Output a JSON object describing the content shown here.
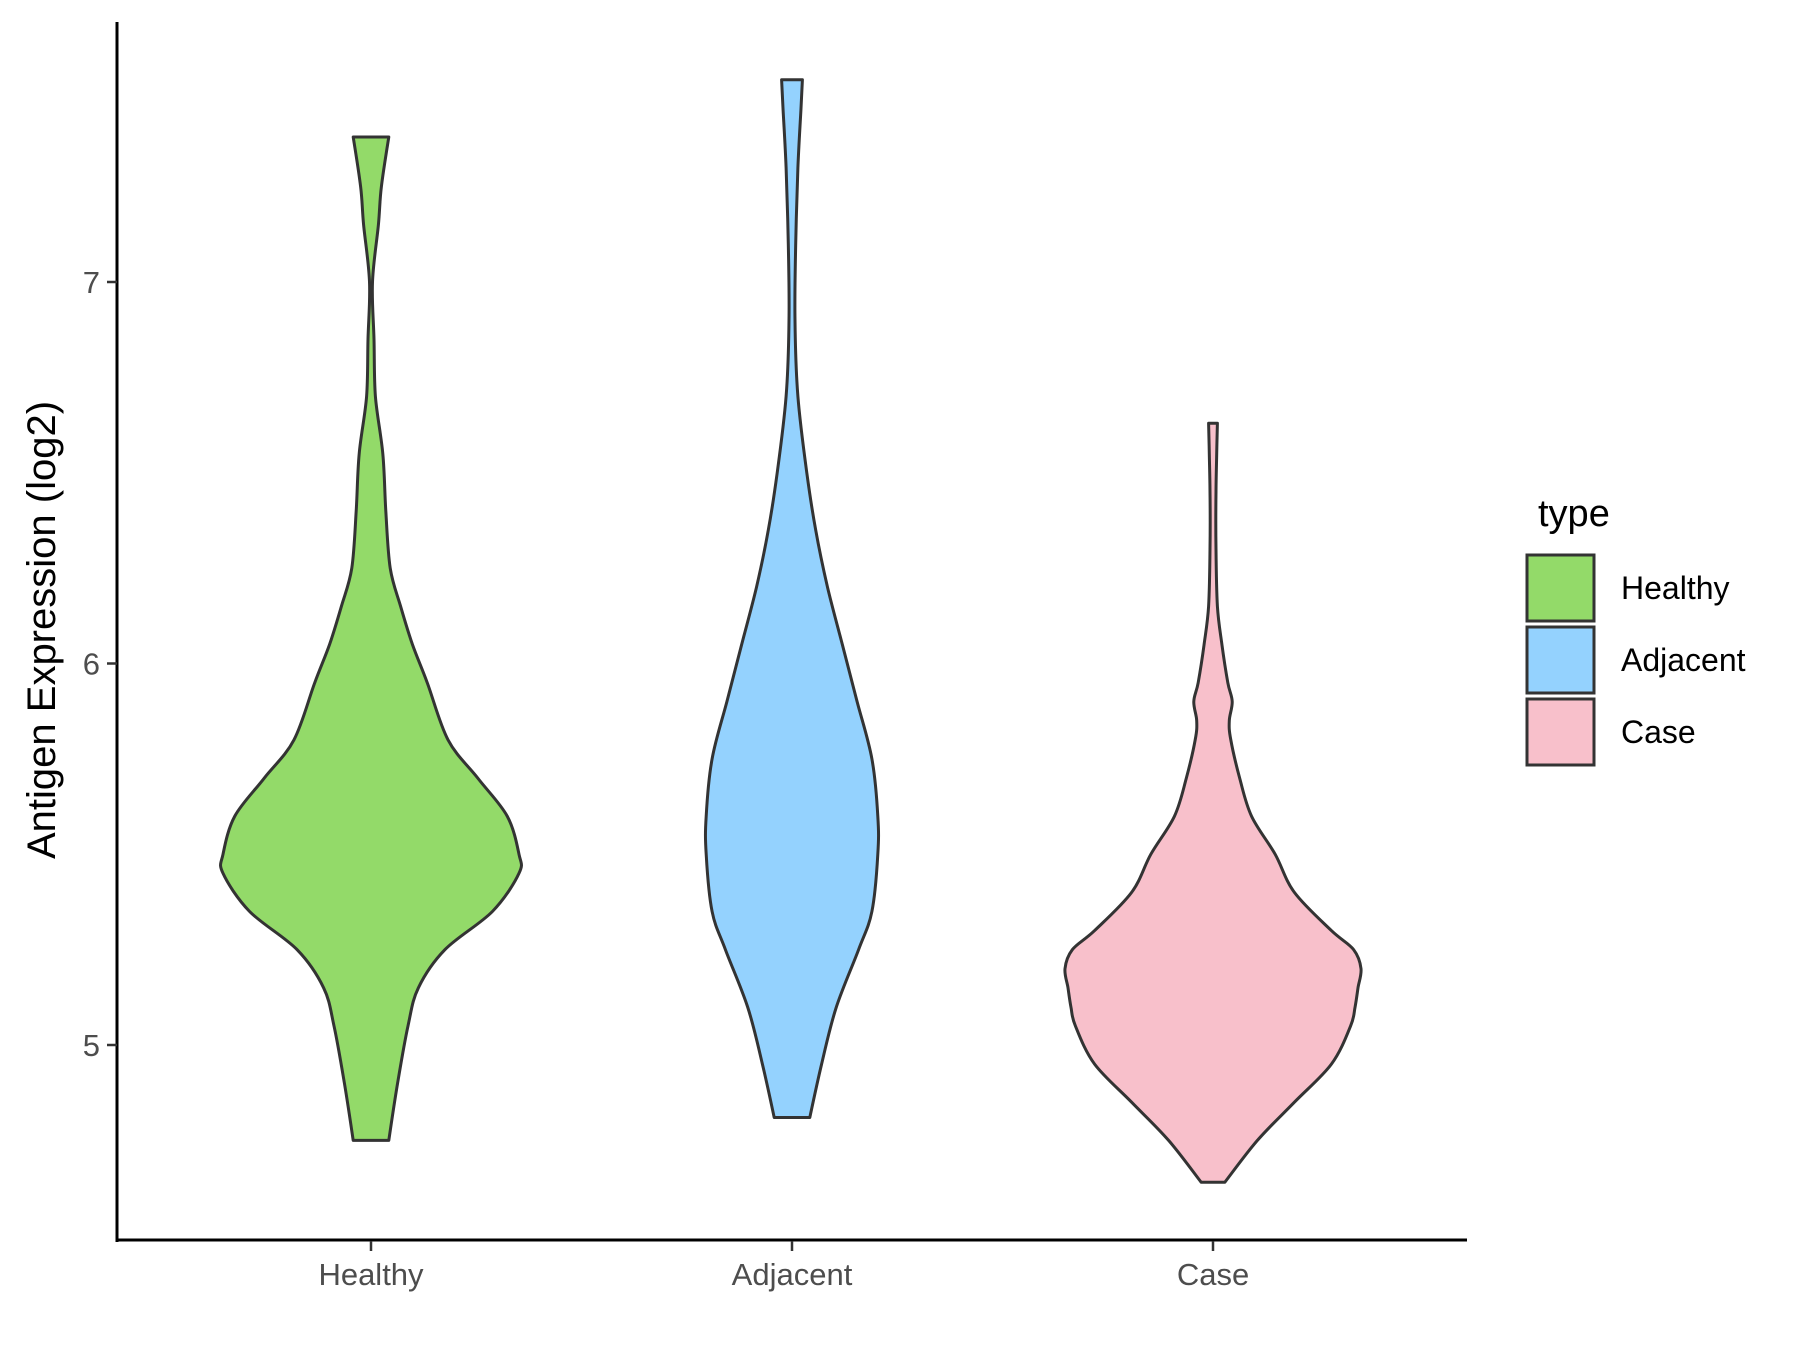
{
  "chart_data": {
    "type": "violin",
    "xlabel": "",
    "ylabel": "Antigen Expression (log2)",
    "ylim": [
      4.5,
      7.68
    ],
    "yticks": [
      5,
      6,
      7
    ],
    "categories": [
      "Healthy",
      "Adjacent",
      "Case"
    ],
    "grid": false,
    "legend": {
      "title": "type",
      "position": "right",
      "entries": [
        "Healthy",
        "Adjacent",
        "Case"
      ]
    },
    "series": [
      {
        "name": "Healthy",
        "color": "#93DA69",
        "min": 4.75,
        "max": 7.38,
        "profile": [
          [
            4.75,
            0.12
          ],
          [
            4.9,
            0.18
          ],
          [
            5.05,
            0.25
          ],
          [
            5.15,
            0.32
          ],
          [
            5.25,
            0.5
          ],
          [
            5.35,
            0.82
          ],
          [
            5.45,
            1.0
          ],
          [
            5.5,
            1.0
          ],
          [
            5.6,
            0.92
          ],
          [
            5.7,
            0.72
          ],
          [
            5.8,
            0.52
          ],
          [
            5.95,
            0.38
          ],
          [
            6.05,
            0.28
          ],
          [
            6.15,
            0.2
          ],
          [
            6.25,
            0.13
          ],
          [
            6.4,
            0.1
          ],
          [
            6.55,
            0.08
          ],
          [
            6.7,
            0.03
          ],
          [
            6.85,
            0.02
          ],
          [
            7.0,
            0.01
          ],
          [
            7.15,
            0.05
          ],
          [
            7.25,
            0.07
          ],
          [
            7.38,
            0.12
          ]
        ]
      },
      {
        "name": "Adjacent",
        "color": "#94D2FE",
        "min": 4.81,
        "max": 7.53,
        "profile": [
          [
            4.81,
            0.12
          ],
          [
            4.95,
            0.2
          ],
          [
            5.1,
            0.3
          ],
          [
            5.25,
            0.45
          ],
          [
            5.35,
            0.54
          ],
          [
            5.5,
            0.58
          ],
          [
            5.6,
            0.58
          ],
          [
            5.75,
            0.54
          ],
          [
            5.9,
            0.44
          ],
          [
            6.05,
            0.34
          ],
          [
            6.2,
            0.24
          ],
          [
            6.35,
            0.16
          ],
          [
            6.5,
            0.1
          ],
          [
            6.7,
            0.04
          ],
          [
            6.9,
            0.02
          ],
          [
            7.1,
            0.025
          ],
          [
            7.3,
            0.04
          ],
          [
            7.45,
            0.06
          ],
          [
            7.53,
            0.07
          ]
        ]
      },
      {
        "name": "Case",
        "color": "#F8C0CB",
        "min": 4.64,
        "max": 6.63,
        "profile": [
          [
            4.64,
            0.08
          ],
          [
            4.75,
            0.3
          ],
          [
            4.85,
            0.55
          ],
          [
            4.95,
            0.8
          ],
          [
            5.05,
            0.93
          ],
          [
            5.1,
            0.96
          ],
          [
            5.15,
            0.98
          ],
          [
            5.2,
            1.0
          ],
          [
            5.25,
            0.95
          ],
          [
            5.3,
            0.8
          ],
          [
            5.4,
            0.55
          ],
          [
            5.5,
            0.42
          ],
          [
            5.6,
            0.26
          ],
          [
            5.7,
            0.18
          ],
          [
            5.8,
            0.12
          ],
          [
            5.85,
            0.11
          ],
          [
            5.9,
            0.13
          ],
          [
            5.95,
            0.1
          ],
          [
            6.05,
            0.06
          ],
          [
            6.15,
            0.03
          ],
          [
            6.3,
            0.02
          ],
          [
            6.45,
            0.02
          ],
          [
            6.55,
            0.025
          ],
          [
            6.63,
            0.03
          ]
        ]
      }
    ]
  }
}
